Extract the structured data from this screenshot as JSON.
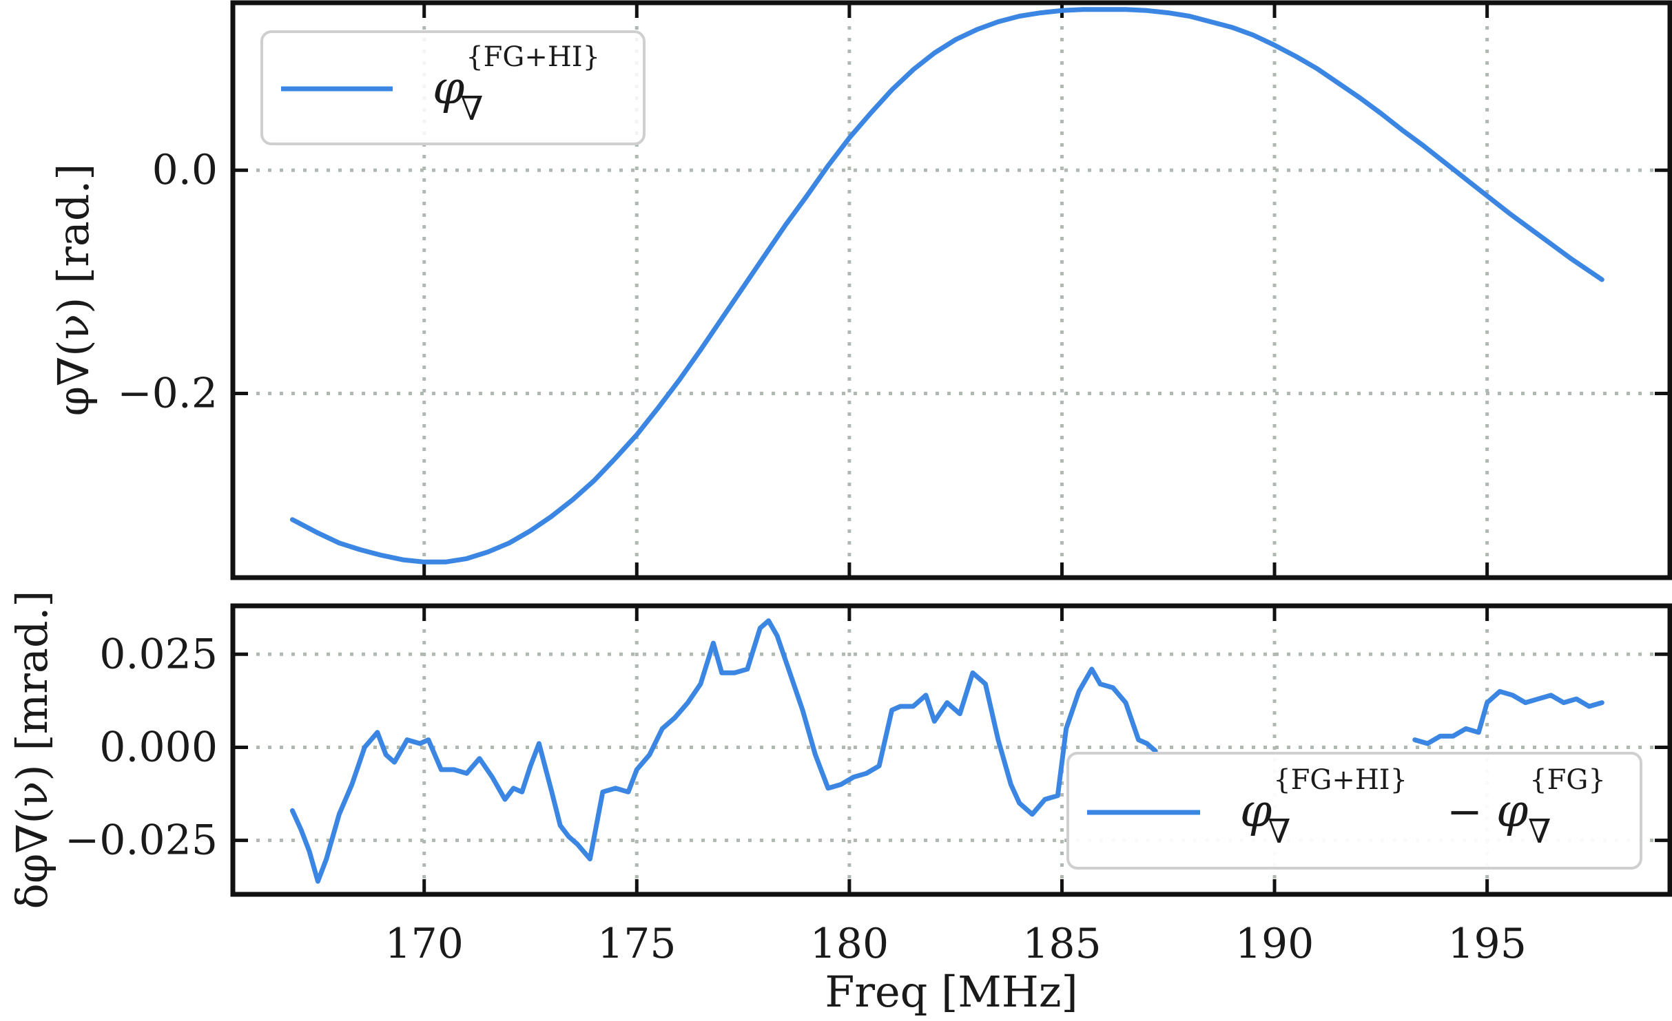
{
  "chart_data": [
    {
      "type": "line",
      "ylabel": "φ∇(ν) [rad.]",
      "xlim": [
        165.5,
        199.3
      ],
      "ylim": [
        -0.365,
        0.15
      ],
      "x_ticks": [
        170,
        175,
        180,
        185,
        190,
        195
      ],
      "y_ticks": [
        0.0,
        -0.2
      ],
      "y_tick_labels": [
        "0.0",
        "−0.2"
      ],
      "grid": true,
      "legend_position": "top-left",
      "series": [
        {
          "name": "φ∇{FG+HI}",
          "legend": {
            "symbol": "φ",
            "sub": "∇",
            "sup": "{FG+HI}"
          },
          "color": "#3a86e2",
          "x": [
            166.9,
            167.5,
            168.0,
            168.5,
            169.0,
            169.5,
            170.0,
            170.5,
            171.0,
            171.5,
            172.0,
            172.5,
            173.0,
            173.5,
            174.0,
            174.5,
            175.0,
            175.5,
            176.0,
            176.5,
            177.0,
            177.5,
            178.0,
            178.5,
            179.0,
            179.5,
            180.0,
            180.5,
            181.0,
            181.5,
            182.0,
            182.5,
            183.0,
            183.5,
            184.0,
            184.5,
            185.0,
            185.5,
            186.0,
            186.5,
            187.0,
            187.5,
            188.0,
            188.5,
            189.0,
            189.5,
            190.0,
            190.5,
            191.0,
            191.5,
            192.0,
            192.5,
            193.0,
            193.5,
            194.0,
            194.5,
            195.0,
            195.5,
            196.0,
            196.5,
            197.0,
            197.7
          ],
          "values": [
            -0.313,
            -0.325,
            -0.334,
            -0.34,
            -0.345,
            -0.349,
            -0.351,
            -0.351,
            -0.348,
            -0.342,
            -0.334,
            -0.323,
            -0.31,
            -0.295,
            -0.278,
            -0.258,
            -0.237,
            -0.213,
            -0.188,
            -0.161,
            -0.133,
            -0.105,
            -0.077,
            -0.049,
            -0.023,
            0.004,
            0.029,
            0.051,
            0.072,
            0.09,
            0.105,
            0.117,
            0.126,
            0.133,
            0.138,
            0.141,
            0.143,
            0.144,
            0.144,
            0.144,
            0.143,
            0.141,
            0.138,
            0.133,
            0.128,
            0.121,
            0.112,
            0.102,
            0.091,
            0.078,
            0.065,
            0.051,
            0.036,
            0.022,
            0.007,
            -0.008,
            -0.023,
            -0.038,
            -0.052,
            -0.066,
            -0.08,
            -0.098
          ]
        }
      ]
    },
    {
      "type": "line",
      "xlabel": "Freq [MHz]",
      "ylabel": "δφ∇(ν) [mrad.]",
      "xlim": [
        165.5,
        199.3
      ],
      "ylim": [
        -0.0395,
        0.038
      ],
      "x_ticks": [
        170,
        175,
        180,
        185,
        190,
        195
      ],
      "x_tick_labels": [
        "170",
        "175",
        "180",
        "185",
        "190",
        "195"
      ],
      "y_ticks": [
        0.025,
        0.0,
        -0.025
      ],
      "y_tick_labels": [
        "0.025",
        "0.000",
        "−0.025"
      ],
      "grid": true,
      "legend_position": "lower-right",
      "series": [
        {
          "name": "φ∇{FG+HI} − φ∇{FG}",
          "legend": {
            "symbol": "φ",
            "sub": "∇",
            "sup": "{FG+HI}",
            "operator": "−",
            "symbol2": "φ",
            "sub2": "∇",
            "sup2": "{FG}"
          },
          "color": "#3a86e2",
          "x": [
            166.9,
            167.1,
            167.3,
            167.5,
            167.7,
            168.0,
            168.3,
            168.6,
            168.9,
            169.1,
            169.3,
            169.6,
            169.9,
            170.1,
            170.4,
            170.7,
            171.0,
            171.3,
            171.6,
            171.9,
            172.1,
            172.3,
            172.5,
            172.7,
            173.0,
            173.2,
            173.4,
            173.6,
            173.9,
            174.2,
            174.5,
            174.8,
            175.0,
            175.3,
            175.6,
            175.9,
            176.2,
            176.5,
            176.8,
            177.0,
            177.3,
            177.6,
            177.9,
            178.1,
            178.3,
            178.6,
            178.9,
            179.2,
            179.5,
            179.8,
            180.1,
            180.4,
            180.7,
            181.0,
            181.2,
            181.5,
            181.8,
            182.0,
            182.3,
            182.6,
            182.9,
            183.2,
            183.5,
            183.8,
            184.0,
            184.3,
            184.6,
            184.9,
            185.1,
            185.4,
            185.7,
            185.9,
            186.2,
            186.5,
            186.8,
            187.0,
            187.2,
            193.3,
            193.6,
            193.9,
            194.2,
            194.5,
            194.8,
            195.0,
            195.3,
            195.6,
            195.9,
            196.2,
            196.5,
            196.8,
            197.1,
            197.4,
            197.7
          ],
          "values": [
            -0.017,
            -0.022,
            -0.028,
            -0.036,
            -0.03,
            -0.018,
            -0.01,
            0.0,
            0.004,
            -0.002,
            -0.004,
            0.002,
            0.001,
            0.002,
            -0.006,
            -0.006,
            -0.007,
            -0.003,
            -0.008,
            -0.014,
            -0.011,
            -0.012,
            -0.005,
            0.001,
            -0.012,
            -0.021,
            -0.024,
            -0.026,
            -0.03,
            -0.012,
            -0.011,
            -0.012,
            -0.006,
            -0.002,
            0.005,
            0.008,
            0.012,
            0.017,
            0.028,
            0.02,
            0.02,
            0.021,
            0.032,
            0.034,
            0.03,
            0.02,
            0.01,
            -0.002,
            -0.011,
            -0.01,
            -0.008,
            -0.007,
            -0.005,
            0.01,
            0.011,
            0.011,
            0.014,
            0.007,
            0.012,
            0.009,
            0.02,
            0.017,
            0.002,
            -0.01,
            -0.015,
            -0.018,
            -0.014,
            -0.013,
            0.005,
            0.015,
            0.021,
            0.017,
            0.016,
            0.012,
            0.002,
            0.001,
            -0.001,
            0.002,
            0.001,
            0.003,
            0.003,
            0.005,
            0.004,
            0.012,
            0.015,
            0.014,
            0.012,
            0.013,
            0.014,
            0.012,
            0.013,
            0.011,
            0.012
          ]
        }
      ]
    }
  ]
}
